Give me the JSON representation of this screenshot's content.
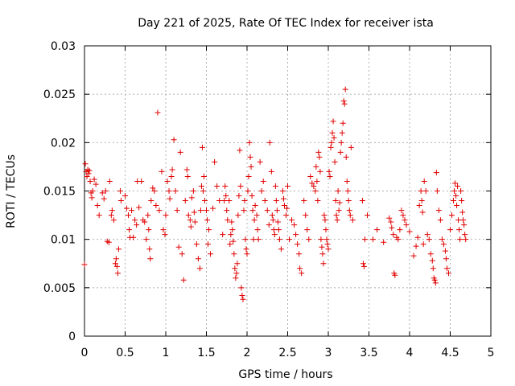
{
  "chart_data": {
    "type": "scatter",
    "title": "Day 221 of 2025, Rate Of TEC Index for receiver ista",
    "xlabel": "GPS time / hours",
    "ylabel": "ROTI / TECUs",
    "xlim": [
      0,
      5
    ],
    "ylim": [
      0,
      0.03
    ],
    "xticks": [
      "0",
      "0.5",
      "1",
      "1.5",
      "2",
      "2.5",
      "3",
      "3.5",
      "4",
      "4.5",
      "5"
    ],
    "yticks": [
      "0",
      "0.005",
      "0.01",
      "0.015",
      "0.02",
      "0.025",
      "0.03"
    ],
    "grid": true,
    "marker": "+",
    "color": "#e00000",
    "series": [
      {
        "points": [
          [
            0.0,
            0.0074
          ],
          [
            0.01,
            0.0178
          ],
          [
            0.02,
            0.017
          ],
          [
            0.03,
            0.0165
          ],
          [
            0.04,
            0.0172
          ],
          [
            0.05,
            0.0168
          ],
          [
            0.06,
            0.0171
          ],
          [
            0.07,
            0.016
          ],
          [
            0.08,
            0.0148
          ],
          [
            0.09,
            0.0143
          ],
          [
            0.1,
            0.015
          ],
          [
            0.12,
            0.0162
          ],
          [
            0.14,
            0.0157
          ],
          [
            0.16,
            0.0135
          ],
          [
            0.18,
            0.0125
          ],
          [
            0.22,
            0.0148
          ],
          [
            0.24,
            0.0142
          ],
          [
            0.26,
            0.015
          ],
          [
            0.28,
            0.0098
          ],
          [
            0.3,
            0.0097
          ],
          [
            0.31,
            0.016
          ],
          [
            0.33,
            0.0125
          ],
          [
            0.34,
            0.013
          ],
          [
            0.36,
            0.012
          ],
          [
            0.38,
            0.0075
          ],
          [
            0.39,
            0.008
          ],
          [
            0.4,
            0.0072
          ],
          [
            0.41,
            0.0065
          ],
          [
            0.42,
            0.009
          ],
          [
            0.44,
            0.015
          ],
          [
            0.45,
            0.014
          ],
          [
            0.5,
            0.0145
          ],
          [
            0.52,
            0.0132
          ],
          [
            0.54,
            0.0125
          ],
          [
            0.55,
            0.011
          ],
          [
            0.56,
            0.0102
          ],
          [
            0.58,
            0.013
          ],
          [
            0.6,
            0.0102
          ],
          [
            0.62,
            0.012
          ],
          [
            0.64,
            0.0115
          ],
          [
            0.65,
            0.016
          ],
          [
            0.67,
            0.0133
          ],
          [
            0.7,
            0.016
          ],
          [
            0.72,
            0.012
          ],
          [
            0.74,
            0.0118
          ],
          [
            0.76,
            0.01
          ],
          [
            0.78,
            0.0125
          ],
          [
            0.79,
            0.011
          ],
          [
            0.8,
            0.009
          ],
          [
            0.81,
            0.008
          ],
          [
            0.82,
            0.014
          ],
          [
            0.84,
            0.0153
          ],
          [
            0.86,
            0.015
          ],
          [
            0.88,
            0.0135
          ],
          [
            0.9,
            0.0231
          ],
          [
            0.92,
            0.013
          ],
          [
            0.95,
            0.017
          ],
          [
            0.97,
            0.011
          ],
          [
            0.99,
            0.0105
          ],
          [
            1.0,
            0.0125
          ],
          [
            1.02,
            0.016
          ],
          [
            1.04,
            0.015
          ],
          [
            1.05,
            0.0142
          ],
          [
            1.07,
            0.0165
          ],
          [
            1.08,
            0.0172
          ],
          [
            1.1,
            0.0203
          ],
          [
            1.12,
            0.015
          ],
          [
            1.14,
            0.013
          ],
          [
            1.16,
            0.0092
          ],
          [
            1.18,
            0.019
          ],
          [
            1.2,
            0.0085
          ],
          [
            1.22,
            0.0058
          ],
          [
            1.24,
            0.014
          ],
          [
            1.26,
            0.0172
          ],
          [
            1.27,
            0.0165
          ],
          [
            1.28,
            0.0125
          ],
          [
            1.3,
            0.012
          ],
          [
            1.31,
            0.0113
          ],
          [
            1.32,
            0.0143
          ],
          [
            1.34,
            0.015
          ],
          [
            1.35,
            0.0128
          ],
          [
            1.36,
            0.0118
          ],
          [
            1.38,
            0.0095
          ],
          [
            1.4,
            0.008
          ],
          [
            1.42,
            0.007
          ],
          [
            1.43,
            0.013
          ],
          [
            1.44,
            0.0155
          ],
          [
            1.45,
            0.0195
          ],
          [
            1.46,
            0.015
          ],
          [
            1.47,
            0.0165
          ],
          [
            1.48,
            0.014
          ],
          [
            1.5,
            0.013
          ],
          [
            1.51,
            0.012
          ],
          [
            1.52,
            0.0095
          ],
          [
            1.53,
            0.011
          ],
          [
            1.55,
            0.0085
          ],
          [
            1.58,
            0.0132
          ],
          [
            1.6,
            0.018
          ],
          [
            1.63,
            0.0155
          ],
          [
            1.66,
            0.014
          ],
          [
            1.7,
            0.0105
          ],
          [
            1.72,
            0.014
          ],
          [
            1.73,
            0.0155
          ],
          [
            1.74,
            0.0145
          ],
          [
            1.75,
            0.013
          ],
          [
            1.76,
            0.012
          ],
          [
            1.78,
            0.014
          ],
          [
            1.79,
            0.0095
          ],
          [
            1.8,
            0.0105
          ],
          [
            1.81,
            0.0118
          ],
          [
            1.82,
            0.011
          ],
          [
            1.83,
            0.0098
          ],
          [
            1.84,
            0.0085
          ],
          [
            1.85,
            0.007
          ],
          [
            1.86,
            0.006
          ],
          [
            1.87,
            0.0065
          ],
          [
            1.88,
            0.0075
          ],
          [
            1.89,
            0.0125
          ],
          [
            1.9,
            0.0145
          ],
          [
            1.91,
            0.0192
          ],
          [
            1.92,
            0.0155
          ],
          [
            1.93,
            0.005
          ],
          [
            1.94,
            0.0042
          ],
          [
            1.95,
            0.0038
          ],
          [
            1.96,
            0.013
          ],
          [
            1.97,
            0.014
          ],
          [
            1.98,
            0.01
          ],
          [
            1.99,
            0.009
          ],
          [
            2.0,
            0.0085
          ],
          [
            2.01,
            0.015
          ],
          [
            2.02,
            0.0165
          ],
          [
            2.03,
            0.02
          ],
          [
            2.04,
            0.0185
          ],
          [
            2.05,
            0.0175
          ],
          [
            2.06,
            0.0145
          ],
          [
            2.07,
            0.013
          ],
          [
            2.08,
            0.01
          ],
          [
            2.09,
            0.012
          ],
          [
            2.1,
            0.0135
          ],
          [
            2.12,
            0.0125
          ],
          [
            2.13,
            0.011
          ],
          [
            2.14,
            0.01
          ],
          [
            2.16,
            0.018
          ],
          [
            2.18,
            0.015
          ],
          [
            2.2,
            0.016
          ],
          [
            2.22,
            0.014
          ],
          [
            2.25,
            0.013
          ],
          [
            2.27,
            0.0115
          ],
          [
            2.28,
            0.02
          ],
          [
            2.3,
            0.017
          ],
          [
            2.31,
            0.0125
          ],
          [
            2.32,
            0.012
          ],
          [
            2.33,
            0.011
          ],
          [
            2.34,
            0.0105
          ],
          [
            2.35,
            0.0155
          ],
          [
            2.36,
            0.014
          ],
          [
            2.37,
            0.013
          ],
          [
            2.38,
            0.0118
          ],
          [
            2.39,
            0.011
          ],
          [
            2.4,
            0.01
          ],
          [
            2.42,
            0.009
          ],
          [
            2.44,
            0.015
          ],
          [
            2.45,
            0.0142
          ],
          [
            2.46,
            0.0135
          ],
          [
            2.48,
            0.0125
          ],
          [
            2.49,
            0.0132
          ],
          [
            2.5,
            0.0155
          ],
          [
            2.52,
            0.01
          ],
          [
            2.55,
            0.012
          ],
          [
            2.58,
            0.0115
          ],
          [
            2.6,
            0.0105
          ],
          [
            2.62,
            0.0095
          ],
          [
            2.64,
            0.0085
          ],
          [
            2.65,
            0.007
          ],
          [
            2.67,
            0.0065
          ],
          [
            2.7,
            0.014
          ],
          [
            2.72,
            0.0125
          ],
          [
            2.74,
            0.011
          ],
          [
            2.76,
            0.01
          ],
          [
            2.78,
            0.0165
          ],
          [
            2.8,
            0.0158
          ],
          [
            2.82,
            0.0155
          ],
          [
            2.84,
            0.015
          ],
          [
            2.85,
            0.0175
          ],
          [
            2.86,
            0.016
          ],
          [
            2.87,
            0.014
          ],
          [
            2.88,
            0.019
          ],
          [
            2.89,
            0.0185
          ],
          [
            2.9,
            0.017
          ],
          [
            2.91,
            0.01
          ],
          [
            2.92,
            0.0092
          ],
          [
            2.93,
            0.0085
          ],
          [
            2.94,
            0.0075
          ],
          [
            2.95,
            0.0125
          ],
          [
            2.96,
            0.012
          ],
          [
            2.97,
            0.011
          ],
          [
            2.98,
            0.01
          ],
          [
            2.99,
            0.0095
          ],
          [
            3.0,
            0.009
          ],
          [
            3.01,
            0.017
          ],
          [
            3.02,
            0.0165
          ],
          [
            3.03,
            0.0195
          ],
          [
            3.04,
            0.02
          ],
          [
            3.05,
            0.021
          ],
          [
            3.06,
            0.0222
          ],
          [
            3.07,
            0.0205
          ],
          [
            3.08,
            0.018
          ],
          [
            3.09,
            0.014
          ],
          [
            3.1,
            0.0125
          ],
          [
            3.11,
            0.012
          ],
          [
            3.12,
            0.015
          ],
          [
            3.13,
            0.013
          ],
          [
            3.14,
            0.0138
          ],
          [
            3.15,
            0.019
          ],
          [
            3.16,
            0.02
          ],
          [
            3.17,
            0.021
          ],
          [
            3.18,
            0.022
          ],
          [
            3.19,
            0.0243
          ],
          [
            3.2,
            0.024
          ],
          [
            3.21,
            0.0255
          ],
          [
            3.22,
            0.0185
          ],
          [
            3.23,
            0.016
          ],
          [
            3.24,
            0.015
          ],
          [
            3.25,
            0.014
          ],
          [
            3.26,
            0.013
          ],
          [
            3.27,
            0.0125
          ],
          [
            3.28,
            0.0195
          ],
          [
            3.3,
            0.012
          ],
          [
            3.42,
            0.014
          ],
          [
            3.43,
            0.0075
          ],
          [
            3.44,
            0.0072
          ],
          [
            3.45,
            0.01
          ],
          [
            3.48,
            0.0125
          ],
          [
            3.55,
            0.01
          ],
          [
            3.6,
            0.011
          ],
          [
            3.68,
            0.0097
          ],
          [
            3.75,
            0.0122
          ],
          [
            3.77,
            0.0118
          ],
          [
            3.78,
            0.0112
          ],
          [
            3.8,
            0.0105
          ],
          [
            3.81,
            0.0065
          ],
          [
            3.82,
            0.0063
          ],
          [
            3.84,
            0.0102
          ],
          [
            3.86,
            0.01
          ],
          [
            3.88,
            0.011
          ],
          [
            3.9,
            0.013
          ],
          [
            3.92,
            0.0125
          ],
          [
            3.94,
            0.012
          ],
          [
            3.96,
            0.0115
          ],
          [
            4.0,
            0.0108
          ],
          [
            4.05,
            0.0083
          ],
          [
            4.08,
            0.0093
          ],
          [
            4.1,
            0.0102
          ],
          [
            4.12,
            0.0135
          ],
          [
            4.14,
            0.015
          ],
          [
            4.15,
            0.014
          ],
          [
            4.16,
            0.0128
          ],
          [
            4.17,
            0.0095
          ],
          [
            4.18,
            0.016
          ],
          [
            4.2,
            0.015
          ],
          [
            4.22,
            0.0105
          ],
          [
            4.24,
            0.01
          ],
          [
            4.26,
            0.0085
          ],
          [
            4.28,
            0.0078
          ],
          [
            4.29,
            0.007
          ],
          [
            4.3,
            0.006
          ],
          [
            4.31,
            0.0058
          ],
          [
            4.32,
            0.0055
          ],
          [
            4.33,
            0.0169
          ],
          [
            4.34,
            0.015
          ],
          [
            4.36,
            0.013
          ],
          [
            4.38,
            0.012
          ],
          [
            4.4,
            0.01
          ],
          [
            4.42,
            0.0095
          ],
          [
            4.44,
            0.0088
          ],
          [
            4.45,
            0.008
          ],
          [
            4.46,
            0.007
          ],
          [
            4.48,
            0.0065
          ],
          [
            4.5,
            0.011
          ],
          [
            4.52,
            0.0125
          ],
          [
            4.54,
            0.014
          ],
          [
            4.55,
            0.015
          ],
          [
            4.56,
            0.0158
          ],
          [
            4.57,
            0.0145
          ],
          [
            4.58,
            0.0135
          ],
          [
            4.59,
            0.0155
          ],
          [
            4.6,
            0.012
          ],
          [
            4.61,
            0.011
          ],
          [
            4.62,
            0.01
          ],
          [
            4.63,
            0.015
          ],
          [
            4.64,
            0.014
          ],
          [
            4.65,
            0.0128
          ],
          [
            4.66,
            0.012
          ],
          [
            4.67,
            0.0115
          ],
          [
            4.68,
            0.0105
          ],
          [
            4.69,
            0.01
          ]
        ]
      }
    ]
  }
}
